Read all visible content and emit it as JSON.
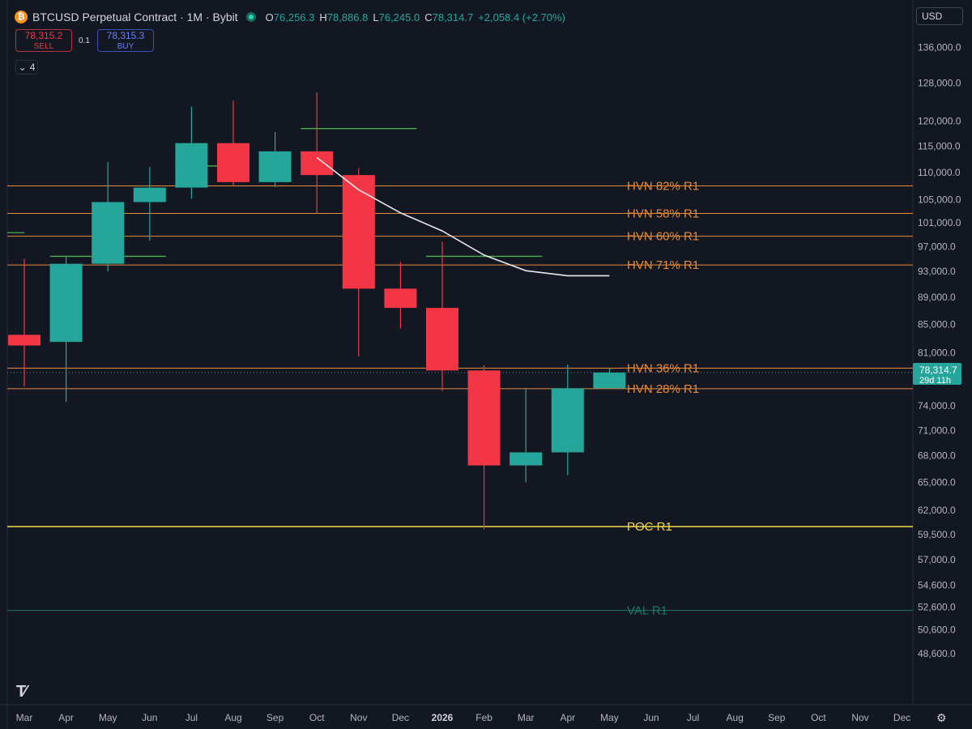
{
  "header": {
    "symbol_icon": "bitcoin-icon",
    "title": "BTCUSD Perpetual Contract · 1M · Bybit",
    "ohlc": [
      {
        "k": "O",
        "v": "76,256.3"
      },
      {
        "k": "H",
        "v": "78,886.8"
      },
      {
        "k": "L",
        "v": "76,245.0"
      },
      {
        "k": "C",
        "v": "78,314.7"
      }
    ],
    "change": "+2,058.4 (+2.70%)"
  },
  "trade": {
    "sell_price": "78,315.2",
    "sell_label": "SELL",
    "qty": "0.1",
    "buy_price": "78,315.3",
    "buy_label": "BUY"
  },
  "indicators_count": "4",
  "currency": "USD",
  "price_badge": {
    "price": "78,314.7",
    "countdown": "29d 11h"
  },
  "colors": {
    "up": "#26a69a",
    "down": "#f23645",
    "hvn": "#e88a3c",
    "poc": "#f2d94c",
    "val": "#1b7a66",
    "bg": "#131722"
  },
  "chart_data": {
    "type": "candlestick",
    "ylim": [
      45500,
      139500
    ],
    "x_labels": [
      "Mar",
      "Apr",
      "May",
      "Jun",
      "Jul",
      "Aug",
      "Sep",
      "Oct",
      "Nov",
      "Dec",
      "2026",
      "Feb",
      "Mar",
      "Apr",
      "May",
      "Jun",
      "Jul",
      "Aug",
      "Sep",
      "Oct",
      "Nov",
      "Dec"
    ],
    "y_ticks": [
      "136,000.0",
      "128,000.0",
      "120,000.0",
      "115,000.0",
      "110,000.0",
      "105,000.0",
      "101,000.0",
      "97,000.0",
      "93,000.0",
      "89,000.0",
      "85,000.0",
      "81,000.0",
      "74,000.0",
      "71,000.0",
      "68,000.0",
      "65,000.0",
      "62,000.0",
      "59,500.0",
      "57,000.0",
      "54,600.0",
      "52,600.0",
      "50,600.0",
      "48,600.0"
    ],
    "candles": [
      {
        "month": "Mar",
        "o": 83500,
        "h": 95000,
        "l": 76500,
        "c": 82000
      },
      {
        "month": "Apr",
        "o": 82500,
        "h": 95500,
        "l": 74500,
        "c": 94200
      },
      {
        "month": "May",
        "o": 94200,
        "h": 112000,
        "l": 93000,
        "c": 104600
      },
      {
        "month": "Jun",
        "o": 104600,
        "h": 111000,
        "l": 98000,
        "c": 107200
      },
      {
        "month": "Jul",
        "o": 107200,
        "h": 123000,
        "l": 105200,
        "c": 115600
      },
      {
        "month": "Aug",
        "o": 115600,
        "h": 124200,
        "l": 107500,
        "c": 108200
      },
      {
        "month": "Sep",
        "o": 108200,
        "h": 117800,
        "l": 107300,
        "c": 114000
      },
      {
        "month": "Oct",
        "o": 114000,
        "h": 126000,
        "l": 102600,
        "c": 109500
      },
      {
        "month": "Nov",
        "o": 109500,
        "h": 110800,
        "l": 80500,
        "c": 90300
      },
      {
        "month": "Dec",
        "o": 90300,
        "h": 94500,
        "l": 84400,
        "c": 87400
      },
      {
        "month": "2026",
        "o": 87400,
        "h": 97800,
        "l": 75900,
        "c": 78600
      },
      {
        "month": "Feb",
        "o": 78600,
        "h": 79300,
        "l": 60000,
        "c": 66900
      },
      {
        "month": "Mar",
        "o": 66900,
        "h": 76300,
        "l": 65000,
        "c": 68400
      },
      {
        "month": "Apr",
        "o": 68400,
        "h": 79400,
        "l": 65800,
        "c": 76256.3
      },
      {
        "month": "May",
        "o": 76256.3,
        "h": 78886.8,
        "l": 76245.0,
        "c": 78314.7
      }
    ],
    "levels": [
      {
        "label": "HVN 82% R1",
        "price": 107500,
        "color": "#e88a3c"
      },
      {
        "label": "HVN 58% R1",
        "price": 102600,
        "color": "#e88a3c"
      },
      {
        "label": "HVN 60% R1",
        "price": 98700,
        "color": "#e88a3c"
      },
      {
        "label": "HVN 71% R1",
        "price": 94000,
        "color": "#e88a3c"
      },
      {
        "label": "HVN 36% R1",
        "price": 78900,
        "color": "#e88a3c"
      },
      {
        "label": "HVN 28% R1",
        "price": 76200,
        "color": "#e88a3c"
      },
      {
        "label": "POC R1",
        "price": 60300,
        "color": "#f2d94c"
      },
      {
        "label": "VAL R1",
        "price": 52300,
        "color": "#1b7a66"
      }
    ],
    "moving_average": [
      {
        "month": "Oct",
        "price": 112800
      },
      {
        "month": "Nov",
        "price": 106800
      },
      {
        "month": "Dec",
        "price": 102700
      },
      {
        "month": "2026",
        "price": 99600
      },
      {
        "month": "Feb",
        "price": 95600
      },
      {
        "month": "Mar",
        "price": 93100
      },
      {
        "month": "Apr",
        "price": 92300
      },
      {
        "month": "May",
        "price": 92300
      }
    ],
    "green_marks": [
      {
        "from": "Mar",
        "to": "Mar",
        "price": 99300
      },
      {
        "from": "Apr",
        "to": "Jun",
        "price": 95400
      },
      {
        "from": "Jul",
        "to": "Aug",
        "price": 111200
      },
      {
        "from": "Oct",
        "to": "Dec",
        "price": 118500
      },
      {
        "from": "2026",
        "to": "Mar",
        "price": 95400
      }
    ],
    "current_price": 78314.7
  }
}
